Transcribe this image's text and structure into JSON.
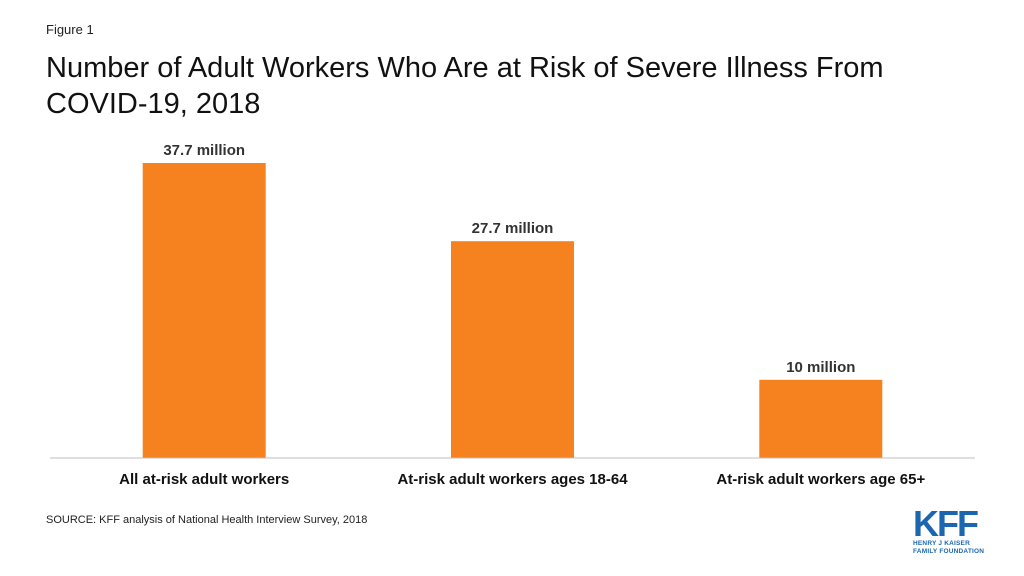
{
  "figure_label": "Figure 1",
  "title": "Number of Adult Workers Who Are at Risk of Severe Illness From COVID-19, 2018",
  "source": "SOURCE: KFF analysis of National Health Interview Survey, 2018",
  "logo": {
    "mark": "KFF",
    "line1": "HENRY J KAISER",
    "line2": "FAMILY FOUNDATION"
  },
  "colors": {
    "bar": "#F5821F",
    "axis": "#bfbfbf",
    "logo": "#1c66b0"
  },
  "chart_data": {
    "type": "bar",
    "title": "Number of Adult Workers Who Are at Risk of Severe Illness From COVID-19, 2018",
    "categories": [
      "All at-risk adult workers",
      "At-risk adult workers ages 18-64",
      "At-risk adult workers age 65+"
    ],
    "values": [
      37.7,
      27.7,
      10
    ],
    "data_labels": [
      "37.7 million",
      "27.7 million",
      "10 million"
    ],
    "unit": "million",
    "xlabel": "",
    "ylabel": "",
    "ylim": [
      0,
      37.7
    ],
    "grid": false,
    "legend": "none"
  }
}
